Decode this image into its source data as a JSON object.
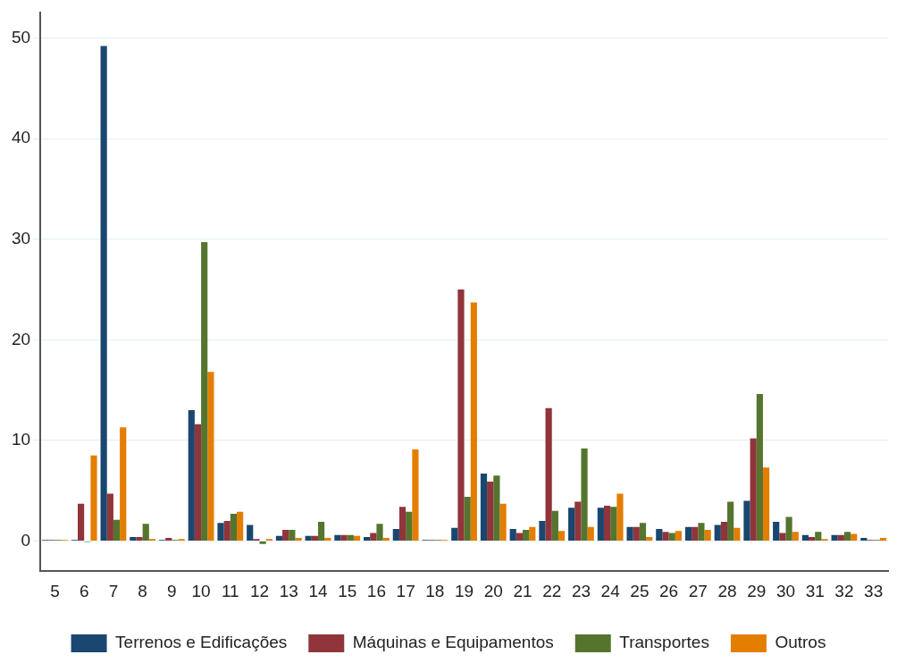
{
  "chart_data": {
    "type": "bar",
    "categories": [
      "5",
      "6",
      "7",
      "8",
      "9",
      "10",
      "11",
      "12",
      "13",
      "14",
      "15",
      "16",
      "17",
      "18",
      "19",
      "20",
      "21",
      "22",
      "23",
      "24",
      "25",
      "26",
      "27",
      "28",
      "29",
      "30",
      "31",
      "32",
      "33"
    ],
    "series": [
      {
        "name": "Terrenos e Edificações",
        "color": "#1a476f",
        "values": [
          0.1,
          0.1,
          49.2,
          0.4,
          0.1,
          13,
          1.8,
          1.6,
          0.5,
          0.5,
          0.6,
          0.4,
          1.2,
          0.1,
          1.3,
          6.7,
          1.2,
          2.0,
          3.3,
          3.3,
          1.4,
          1.2,
          1.4,
          1.6,
          4.0,
          1.9,
          0.6,
          0.6,
          0.3
        ]
      },
      {
        "name": "Máquinas e Equipamentos",
        "color": "#90353b",
        "values": [
          0.1,
          3.7,
          4.7,
          0.4,
          0.3,
          11.6,
          2.0,
          0.2,
          1.1,
          0.5,
          0.6,
          0.8,
          3.4,
          0.1,
          25.0,
          5.9,
          0.8,
          13.2,
          3.9,
          3.5,
          1.4,
          0.9,
          1.4,
          1.9,
          10.2,
          0.8,
          0.4,
          0.6,
          0.1
        ]
      },
      {
        "name": "Transportes",
        "color": "#55752f",
        "values": [
          0.1,
          -0.1,
          2.1,
          1.7,
          0.1,
          29.7,
          2.7,
          -0.3,
          1.1,
          1.9,
          0.6,
          1.7,
          2.9,
          0.1,
          4.4,
          6.5,
          1.1,
          3.0,
          9.2,
          3.4,
          1.8,
          0.8,
          1.8,
          3.9,
          14.6,
          2.4,
          0.9,
          0.9,
          0.1
        ]
      },
      {
        "name": "Outros",
        "color": "#e37e00",
        "values": [
          0.1,
          8.5,
          11.3,
          0.2,
          0.2,
          16.8,
          2.9,
          0.2,
          0.3,
          0.3,
          0.5,
          0.3,
          9.1,
          0.1,
          23.7,
          3.7,
          1.4,
          1.0,
          1.4,
          4.7,
          0.4,
          1.0,
          1.1,
          1.3,
          7.3,
          0.9,
          0.2,
          0.7,
          0.3
        ]
      }
    ],
    "ylim": [
      -3,
      52.5
    ],
    "yticks": [
      0,
      10,
      20,
      30,
      40,
      50
    ],
    "grid": "y",
    "legend": "bottom"
  }
}
